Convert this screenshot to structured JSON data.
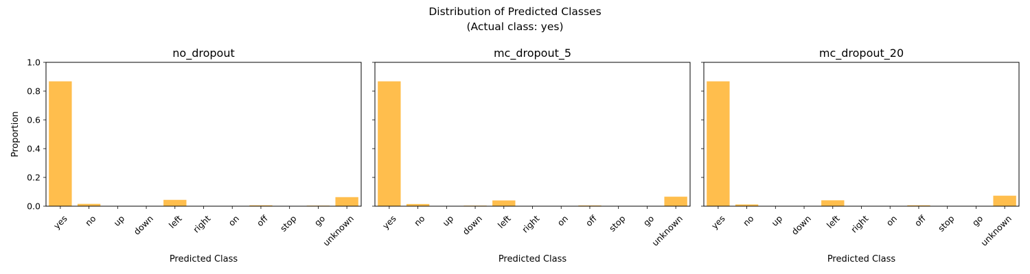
{
  "figure": {
    "suptitle_line1": "Distribution of Predicted Classes",
    "suptitle_line2": "(Actual class: yes)",
    "bar_color": "#ffbe4d",
    "ylabel": "Proportion",
    "xlabel": "Predicted Class",
    "ylim": [
      0,
      1.0
    ],
    "yticks": [
      "0.0",
      "0.2",
      "0.4",
      "0.6",
      "0.8",
      "1.0"
    ]
  },
  "chart_data": [
    {
      "type": "bar",
      "title": "no_dropout",
      "xlabel": "Predicted Class",
      "ylabel": "Proportion",
      "ylim": [
        0,
        1.0
      ],
      "categories": [
        "yes",
        "no",
        "up",
        "down",
        "left",
        "right",
        "on",
        "off",
        "stop",
        "go",
        "unknown"
      ],
      "values": [
        0.868,
        0.016,
        0.0,
        0.0,
        0.044,
        0.0,
        0.0,
        0.006,
        0.0,
        0.004,
        0.063
      ]
    },
    {
      "type": "bar",
      "title": "mc_dropout_5",
      "xlabel": "Predicted Class",
      "ylabel": "",
      "ylim": [
        0,
        1.0
      ],
      "categories": [
        "yes",
        "no",
        "up",
        "down",
        "left",
        "right",
        "on",
        "off",
        "stop",
        "go",
        "unknown"
      ],
      "values": [
        0.868,
        0.015,
        0.0,
        0.004,
        0.04,
        0.0,
        0.0,
        0.005,
        0.0,
        0.002,
        0.066
      ]
    },
    {
      "type": "bar",
      "title": "mc_dropout_20",
      "xlabel": "Predicted Class",
      "ylabel": "",
      "ylim": [
        0,
        1.0
      ],
      "categories": [
        "yes",
        "no",
        "up",
        "down",
        "left",
        "right",
        "on",
        "off",
        "stop",
        "go",
        "unknown"
      ],
      "values": [
        0.868,
        0.012,
        0.0,
        0.002,
        0.041,
        0.0,
        0.0,
        0.006,
        0.0,
        0.002,
        0.073
      ]
    }
  ]
}
